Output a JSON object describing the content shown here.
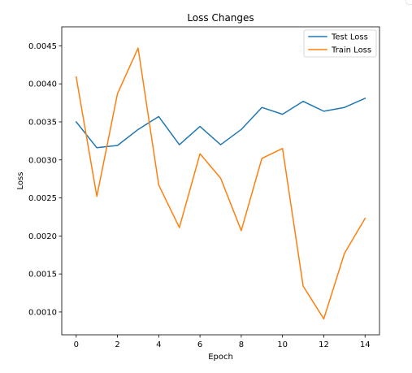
{
  "chart_data": {
    "type": "line",
    "title": "Loss Changes",
    "xlabel": "Epoch",
    "ylabel": "Loss",
    "x": [
      0,
      1,
      2,
      3,
      4,
      5,
      6,
      7,
      8,
      9,
      10,
      11,
      12,
      13,
      14
    ],
    "xlim": [
      -0.7,
      14.7
    ],
    "ylim": [
      0.0007,
      0.00475
    ],
    "x_ticks": [
      0,
      2,
      4,
      6,
      8,
      10,
      12,
      14
    ],
    "y_ticks": [
      0.001,
      0.0015,
      0.002,
      0.0025,
      0.003,
      0.0035,
      0.004,
      0.0045
    ],
    "y_tick_labels": [
      "0.0010",
      "0.0015",
      "0.0020",
      "0.0025",
      "0.0030",
      "0.0035",
      "0.0040",
      "0.0045"
    ],
    "grid": false,
    "legend_position": "top-right",
    "series": [
      {
        "name": "Test Loss",
        "color": "#1f77b4",
        "values": [
          0.0035,
          0.00316,
          0.00319,
          0.0034,
          0.00357,
          0.0032,
          0.00344,
          0.0032,
          0.0034,
          0.00369,
          0.0036,
          0.00377,
          0.00364,
          0.00369,
          0.00381
        ]
      },
      {
        "name": "Train Loss",
        "color": "#ff7f0e",
        "values": [
          0.00409,
          0.00252,
          0.00387,
          0.00447,
          0.00267,
          0.00211,
          0.00308,
          0.00276,
          0.00207,
          0.00302,
          0.00315,
          0.00134,
          0.00091,
          0.00177,
          0.00223
        ]
      }
    ]
  }
}
